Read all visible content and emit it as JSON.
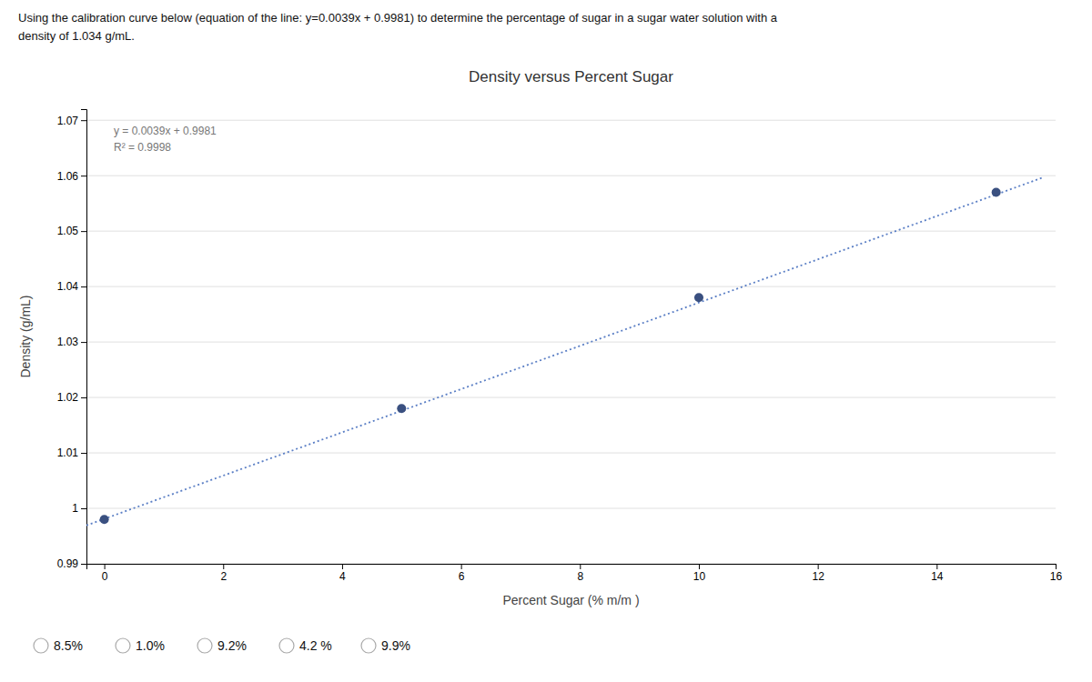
{
  "chart_data": {
    "type": "scatter",
    "title": "Density versus Percent Sugar",
    "x_label": "Percent Sugar (% m/m )",
    "y_label": "Density (g/mL)",
    "annotations": [
      "y = 0.0039x + 0.9981",
      "R² = 0.9998"
    ],
    "series": [
      {
        "type": "scatter",
        "color": "#3A5080",
        "marker": "circle",
        "x": [
          0,
          5,
          10,
          15
        ],
        "values": [
          0.998,
          1.018,
          1.038,
          1.057
        ]
      },
      {
        "type": "line",
        "color": "#5B7FC5",
        "line_style": "dotted",
        "x": [
          -0.3,
          15.8
        ],
        "values": [
          0.99693,
          1.05972
        ]
      }
    ],
    "xlim": [
      -0.3,
      16
    ],
    "ylim": [
      0.99,
      1.072
    ],
    "xticks": [
      0,
      2,
      4,
      6,
      8,
      10,
      12,
      14,
      16
    ],
    "yticks": [
      0.99,
      1,
      1.01,
      1.02,
      1.03,
      1.04,
      1.05,
      1.06,
      1.07
    ],
    "grid": "y"
  },
  "header": [
    "Using the calibration curve below (equation of the line: y=0.0039x + 0.9981) to determine the percentage of sugar in a sugar water solution with a",
    "density of 1.034 g/mL."
  ],
  "choices": [
    "8.5%",
    "1.0%",
    "9.2%",
    "4.2 %",
    "9.9%"
  ]
}
